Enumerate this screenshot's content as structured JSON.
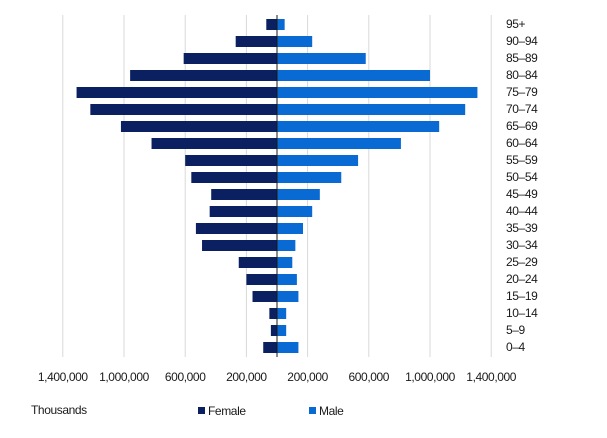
{
  "chart_data": {
    "type": "bar",
    "orientation": "horizontal-diverging",
    "unit_label": "Thousands",
    "categories": [
      "95+",
      "90–94",
      "85–89",
      "80–84",
      "75–79",
      "70–74",
      "65–69",
      "60–64",
      "55–59",
      "50–54",
      "45–49",
      "40–44",
      "35–39",
      "30–34",
      "25–29",
      "20–24",
      "15–19",
      "10–14",
      "5–9",
      "0–4"
    ],
    "series": [
      {
        "name": "Female",
        "color": "#0b2060",
        "values": [
          70000,
          270000,
          610000,
          960000,
          1310000,
          1220000,
          1020000,
          820000,
          600000,
          560000,
          430000,
          440000,
          530000,
          490000,
          250000,
          200000,
          160000,
          50000,
          40000,
          90000
        ]
      },
      {
        "name": "Male",
        "color": "#0a6ad4",
        "values": [
          50000,
          230000,
          580000,
          1000000,
          1310000,
          1230000,
          1060000,
          810000,
          530000,
          420000,
          280000,
          230000,
          170000,
          120000,
          100000,
          130000,
          140000,
          60000,
          60000,
          140000
        ]
      }
    ],
    "x_ticks": [
      "1,400,000",
      "1,000,000",
      "600,000",
      "200,000",
      "200,000",
      "600,000",
      "1,000,000",
      "1,400,000"
    ],
    "x_tick_values": [
      -1400000,
      -1000000,
      -600000,
      -200000,
      200000,
      600000,
      1000000,
      1400000
    ],
    "xlim": [
      -1400000,
      1400000
    ],
    "grid": "vertical",
    "legend_position": "bottom"
  }
}
